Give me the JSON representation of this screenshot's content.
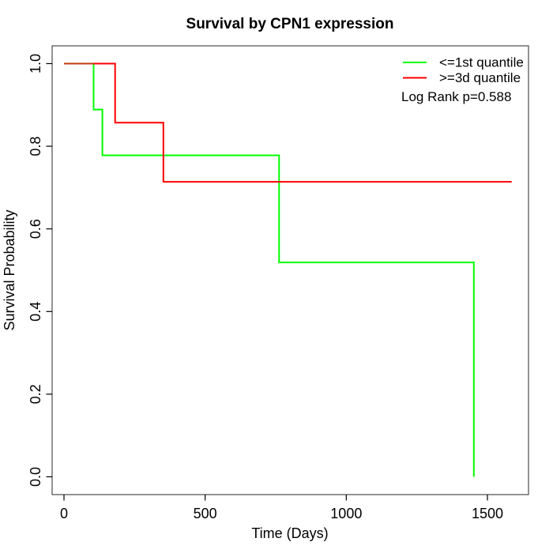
{
  "chart_data": {
    "type": "line",
    "subtype": "kaplan-meier-step",
    "title": "Survival by CPN1 expression",
    "xlabel": "Time (Days)",
    "ylabel": "Survival Probability",
    "xlim": [
      0,
      1645
    ],
    "ylim": [
      0.0,
      1.0
    ],
    "x_tick_values": [
      0,
      500,
      1000,
      1500
    ],
    "x_tick_labels": [
      "0",
      "500",
      "1000",
      "1500"
    ],
    "y_tick_values": [
      0.0,
      0.2,
      0.4,
      0.6,
      0.8,
      1.0
    ],
    "y_tick_labels": [
      "0.0",
      "0.2",
      "0.4",
      "0.6",
      "0.8",
      "1.0"
    ],
    "grid": false,
    "legend_position": "top-right-inside",
    "annotation": "Log Rank p=0.588",
    "series": [
      {
        "name": "<=1st quantile",
        "color": "#00ff00",
        "points": [
          [
            0,
            1.0
          ],
          [
            105,
            1.0
          ],
          [
            105,
            0.889
          ],
          [
            136,
            0.889
          ],
          [
            136,
            0.778
          ],
          [
            762,
            0.778
          ],
          [
            762,
            0.519
          ],
          [
            1452,
            0.519
          ],
          [
            1452,
            0.0
          ]
        ]
      },
      {
        "name": ">=3d quantile",
        "color": "#ff0000",
        "points": [
          [
            0,
            1.0
          ],
          [
            181,
            1.0
          ],
          [
            181,
            0.857
          ],
          [
            352,
            0.857
          ],
          [
            352,
            0.714
          ],
          [
            1586,
            0.714
          ]
        ]
      }
    ],
    "overlap_segment": {
      "x_start": 0,
      "x_end": 105,
      "y": 1.0,
      "color": "#c23a0c"
    },
    "box_color": "#595959",
    "tick_color": "#000000",
    "background_color": "#ffffff"
  }
}
